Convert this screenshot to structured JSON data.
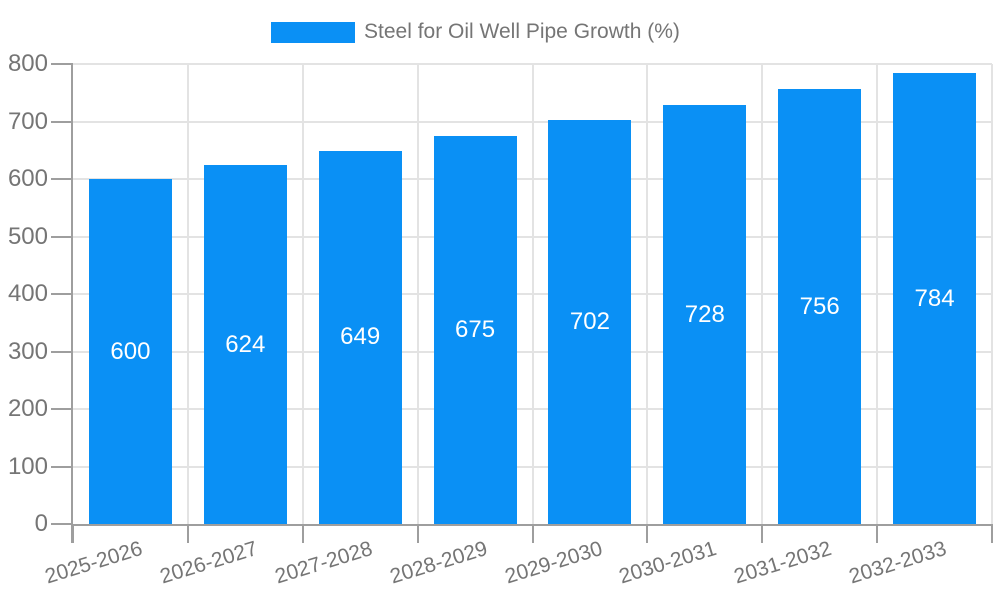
{
  "legend": {
    "label": "Steel for Oil Well Pipe Growth (%)"
  },
  "chart_data": {
    "type": "bar",
    "title": "Steel for Oil Well Pipe Growth (%)",
    "categories": [
      "2025-2026",
      "2026-2027",
      "2027-2028",
      "2028-2029",
      "2029-2030",
      "2030-2031",
      "2031-2032",
      "2032-2033"
    ],
    "values": [
      600,
      624,
      649,
      675,
      702,
      728,
      756,
      784
    ],
    "xlabel": "",
    "ylabel": "",
    "ylim": [
      0,
      800
    ],
    "ytick_step": 100,
    "ytick_labels": [
      "0",
      "100",
      "200",
      "300",
      "400",
      "500",
      "600",
      "700",
      "800"
    ],
    "grid": true,
    "legend_position": "top",
    "colors": {
      "bar": "#0a90f5",
      "bar_label": "#ffffff",
      "axis_line": "#9e9e9e",
      "gridline": "#e3e3e3",
      "tick_text": "#757575",
      "legend_text": "#757575",
      "background": "#ffffff"
    }
  }
}
